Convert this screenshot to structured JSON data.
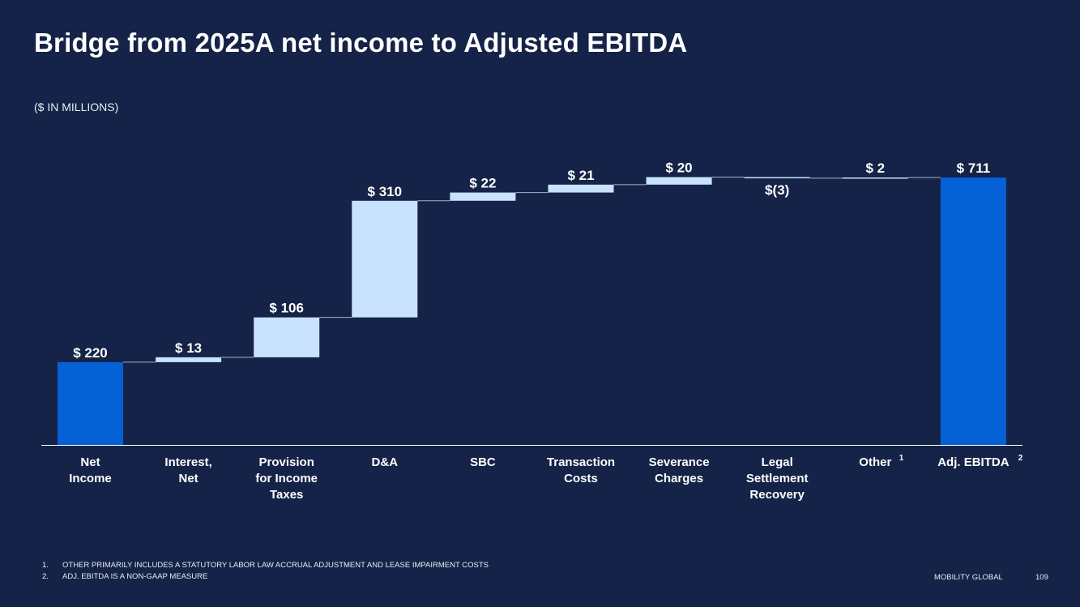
{
  "page": {
    "title": "Bridge from 2025A net income to Adjusted EBITDA",
    "subtitle": "($ IN MILLIONS)",
    "footnotes": [
      {
        "num": "1.",
        "text": "OTHER PRIMARILY INCLUDES A STATUTORY LABOR LAW ACCRUAL ADJUSTMENT AND LEASE IMPAIRMENT COSTS"
      },
      {
        "num": "2.",
        "text": "ADJ. EBITDA IS A NON-GAAP MEASURE"
      }
    ],
    "brand": "MOBILITY GLOBAL",
    "page_number": "109"
  },
  "colors": {
    "background": "#142347",
    "total_bar": "#0561d6",
    "step_bar": "#c9e3ff",
    "connector": "#a9b2c4",
    "axis": "#ffffff"
  },
  "chart_data": {
    "type": "bar",
    "subtype": "waterfall",
    "title": "Bridge from 2025A net income to Adjusted EBITDA",
    "unit": "($ IN MILLIONS)",
    "categories": [
      {
        "lines": [
          "Net",
          "Income"
        ],
        "sup": ""
      },
      {
        "lines": [
          "Interest,",
          "Net"
        ],
        "sup": ""
      },
      {
        "lines": [
          "Provision",
          "for Income",
          "Taxes"
        ],
        "sup": ""
      },
      {
        "lines": [
          "D&A"
        ],
        "sup": ""
      },
      {
        "lines": [
          "SBC"
        ],
        "sup": ""
      },
      {
        "lines": [
          "Transaction",
          "Costs"
        ],
        "sup": ""
      },
      {
        "lines": [
          "Severance",
          "Charges"
        ],
        "sup": ""
      },
      {
        "lines": [
          "Legal",
          "Settlement",
          "Recovery"
        ],
        "sup": ""
      },
      {
        "lines": [
          "Other"
        ],
        "sup": "1"
      },
      {
        "lines": [
          "Adj. EBITDA"
        ],
        "sup": "2"
      }
    ],
    "values": [
      220,
      13,
      106,
      310,
      22,
      21,
      20,
      -3,
      2,
      711
    ],
    "kinds": [
      "total",
      "step",
      "step",
      "step",
      "step",
      "step",
      "step",
      "step",
      "step",
      "total"
    ],
    "data_labels": [
      "$ 220",
      "$ 13",
      "$ 106",
      "$ 310",
      "$ 22",
      "$ 21",
      "$ 20",
      "$(3)",
      "$ 2",
      "$ 711"
    ],
    "ylim": [
      0,
      711
    ],
    "grid": false,
    "legend": "none"
  }
}
